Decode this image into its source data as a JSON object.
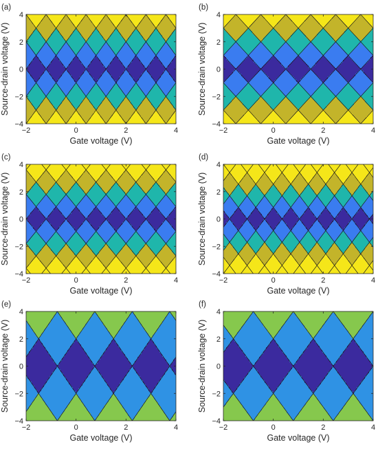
{
  "chart_data": [
    {
      "type": "heatmap",
      "panel_label": "(a)",
      "xlabel": "Gate voltage (V)",
      "ylabel": "Source-drain voltage (V)",
      "xlim": [
        -2,
        4
      ],
      "ylim": [
        -4,
        4
      ],
      "xticks": [
        -2,
        0,
        2,
        4
      ],
      "yticks": [
        -4,
        -2,
        0,
        2,
        4
      ],
      "grid": false,
      "dot_charge_period": 0.8,
      "charging_voltage": 1.0,
      "level_colors": [
        "#3b2a9e",
        "#3a7cf0",
        "#1fb6ab",
        "#c3b42a",
        "#f5e619"
      ]
    },
    {
      "type": "heatmap",
      "panel_label": "(b)",
      "xlabel": "Gate voltage (V)",
      "ylabel": "Source-drain voltage (V)",
      "xlim": [
        -2,
        4
      ],
      "ylim": [
        -4,
        4
      ],
      "xticks": [
        -2,
        0,
        2,
        4
      ],
      "yticks": [
        -4,
        -2,
        0,
        2,
        4
      ],
      "grid": false,
      "dot_charge_period": 1.0,
      "charging_voltage": 1.0,
      "level_colors": [
        "#3b2a9e",
        "#3a7cf0",
        "#1fb6ab",
        "#c3b42a",
        "#f5e619"
      ]
    },
    {
      "type": "heatmap",
      "panel_label": "(c)",
      "xlabel": "Gate voltage (V)",
      "ylabel": "Source-drain voltage (V)",
      "xlim": [
        -2,
        4
      ],
      "ylim": [
        -4,
        4
      ],
      "xticks": [
        -2,
        0,
        2,
        4
      ],
      "yticks": [
        -4,
        -2,
        0,
        2,
        4
      ],
      "grid": false,
      "dot_charge_period": 0.8,
      "charging_voltage": 0.9,
      "level_colors": [
        "#3b2a9e",
        "#3a7cf0",
        "#1fb6ab",
        "#c3b42a",
        "#f5e619"
      ]
    },
    {
      "type": "heatmap",
      "panel_label": "(d)",
      "xlabel": "Gate voltage (V)",
      "ylabel": "Source-drain voltage (V)",
      "xlim": [
        -2,
        4
      ],
      "ylim": [
        -4,
        4
      ],
      "xticks": [
        -2,
        0,
        2,
        4
      ],
      "yticks": [
        -4,
        -2,
        0,
        2,
        4
      ],
      "grid": false,
      "dot_charge_period": 0.7,
      "charging_voltage": 0.85,
      "level_colors": [
        "#3b2a9e",
        "#3a7cf0",
        "#1fb6ab",
        "#c3b42a",
        "#f5e619"
      ]
    },
    {
      "type": "heatmap",
      "panel_label": "(e)",
      "xlabel": "Gate voltage (V)",
      "ylabel": "Source-drain voltage (V)",
      "xlim": [
        -2,
        4
      ],
      "ylim": [
        -4,
        4
      ],
      "xticks": [
        -2,
        0,
        2,
        4
      ],
      "yticks": [
        -4,
        -2,
        0,
        2,
        4
      ],
      "grid": false,
      "dot_charge_period": 1.5,
      "charging_voltage": 2.0,
      "level_colors": [
        "#3b2a9e",
        "#2f92e4",
        "#86c84d",
        "#f2e51f"
      ]
    },
    {
      "type": "heatmap",
      "panel_label": "(f)",
      "xlabel": "Gate voltage (V)",
      "ylabel": "Source-drain voltage (V)",
      "xlim": [
        -2,
        4
      ],
      "ylim": [
        -4,
        4
      ],
      "xticks": [
        -2,
        0,
        2,
        4
      ],
      "yticks": [
        -4,
        -2,
        0,
        2,
        4
      ],
      "grid": false,
      "dot_charge_period": 1.6,
      "charging_voltage": 2.0,
      "level_colors": [
        "#3b2a9e",
        "#2f92e4",
        "#86c84d",
        "#f2e51f"
      ]
    }
  ]
}
